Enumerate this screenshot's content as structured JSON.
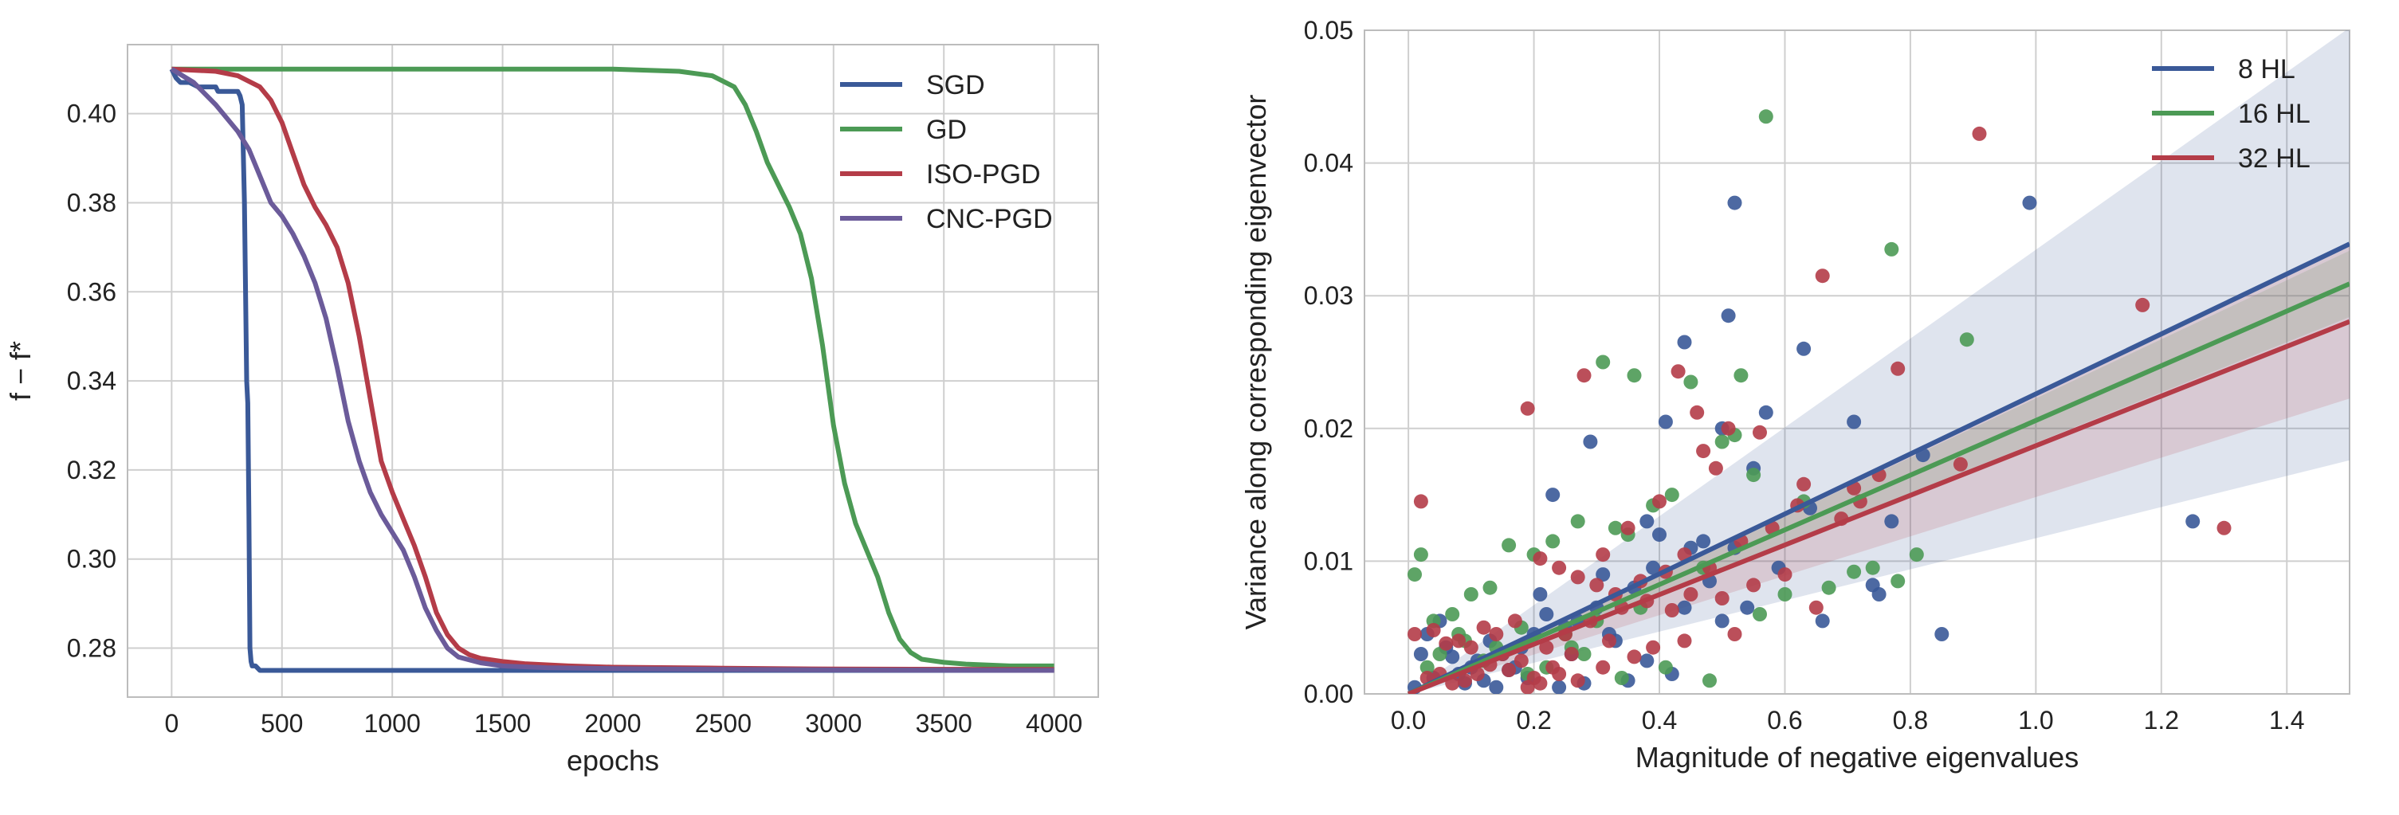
{
  "chart_data": [
    {
      "type": "line",
      "title": "",
      "xlabel": "epochs",
      "ylabel": "f − f*",
      "xlim": [
        -200,
        4200
      ],
      "ylim": [
        0.269,
        0.4155
      ],
      "xticks": [
        0,
        500,
        1000,
        1500,
        2000,
        2500,
        3000,
        3500,
        4000
      ],
      "yticks": [
        0.28,
        0.3,
        0.32,
        0.34,
        0.36,
        0.38,
        0.4
      ],
      "grid": true,
      "legend": "top-right",
      "series": [
        {
          "name": "SGD",
          "color": "#3a5998",
          "x": [
            0,
            20,
            40,
            80,
            120,
            200,
            210,
            300,
            310,
            320,
            330,
            335,
            340,
            345,
            350,
            355,
            360,
            365,
            380,
            400,
            420,
            1000,
            2000,
            3000,
            4000
          ],
          "y": [
            0.41,
            0.408,
            0.407,
            0.407,
            0.406,
            0.406,
            0.405,
            0.405,
            0.404,
            0.402,
            0.38,
            0.36,
            0.34,
            0.335,
            0.31,
            0.28,
            0.277,
            0.276,
            0.276,
            0.275,
            0.275,
            0.275,
            0.275,
            0.275,
            0.275
          ]
        },
        {
          "name": "GD",
          "color": "#4c9a55",
          "x": [
            0,
            1000,
            2000,
            2300,
            2450,
            2550,
            2600,
            2650,
            2700,
            2750,
            2800,
            2850,
            2900,
            2950,
            3000,
            3050,
            3100,
            3150,
            3200,
            3250,
            3300,
            3350,
            3400,
            3500,
            3600,
            3700,
            3800,
            4000
          ],
          "y": [
            0.41,
            0.41,
            0.41,
            0.4095,
            0.4085,
            0.406,
            0.402,
            0.396,
            0.389,
            0.384,
            0.379,
            0.373,
            0.363,
            0.348,
            0.33,
            0.317,
            0.308,
            0.302,
            0.296,
            0.288,
            0.282,
            0.279,
            0.2775,
            0.2768,
            0.2764,
            0.2762,
            0.276,
            0.276
          ]
        },
        {
          "name": "ISO-PGD",
          "color": "#b43c48",
          "x": [
            0,
            200,
            300,
            400,
            450,
            500,
            550,
            600,
            650,
            700,
            750,
            800,
            850,
            900,
            950,
            1000,
            1050,
            1100,
            1150,
            1200,
            1250,
            1300,
            1350,
            1400,
            1500,
            1600,
            1800,
            2000,
            2500,
            3000,
            4000
          ],
          "y": [
            0.41,
            0.4095,
            0.4085,
            0.406,
            0.403,
            0.398,
            0.391,
            0.384,
            0.379,
            0.375,
            0.37,
            0.362,
            0.35,
            0.336,
            0.322,
            0.315,
            0.309,
            0.303,
            0.296,
            0.288,
            0.283,
            0.28,
            0.2785,
            0.2777,
            0.277,
            0.2765,
            0.276,
            0.2757,
            0.2755,
            0.2753,
            0.2752
          ]
        },
        {
          "name": "CNC-PGD",
          "color": "#6b5b9a",
          "x": [
            0,
            100,
            200,
            300,
            350,
            400,
            450,
            500,
            550,
            600,
            650,
            700,
            750,
            800,
            850,
            900,
            950,
            1000,
            1050,
            1100,
            1150,
            1200,
            1250,
            1300,
            1400,
            1500,
            1700,
            2000,
            2500,
            3000,
            4000
          ],
          "y": [
            0.41,
            0.407,
            0.402,
            0.396,
            0.392,
            0.386,
            0.38,
            0.377,
            0.373,
            0.368,
            0.362,
            0.354,
            0.343,
            0.331,
            0.322,
            0.315,
            0.31,
            0.306,
            0.302,
            0.296,
            0.289,
            0.284,
            0.28,
            0.278,
            0.2767,
            0.276,
            0.2756,
            0.2754,
            0.2752,
            0.2751,
            0.275
          ]
        }
      ]
    },
    {
      "type": "scatter",
      "title": "",
      "xlabel": "Magnitude of negative eigenvalues",
      "ylabel": "Variance along corresponding eigenvector",
      "xlim": [
        -0.07,
        1.5
      ],
      "ylim": [
        0.0,
        0.05
      ],
      "xticks": [
        0.0,
        0.2,
        0.4,
        0.6,
        0.8,
        1.0,
        1.2,
        1.4
      ],
      "yticks": [
        0.0,
        0.01,
        0.02,
        0.03,
        0.04,
        0.05
      ],
      "grid": true,
      "legend": "top-right",
      "series": [
        {
          "name": "8 HL",
          "color": "#3a5998",
          "fit": {
            "slope": 0.0226,
            "intercept": 0.0,
            "band_x0": 0.0,
            "band_half_width_at_1_5": 0.0163
          },
          "x": [
            0.52,
            0.44,
            0.51,
            0.99,
            0.63,
            0.57,
            0.5,
            0.41,
            0.29,
            0.38,
            0.23,
            0.55,
            0.47,
            0.4,
            0.31,
            0.82,
            0.71,
            0.77,
            0.74,
            0.66,
            1.25,
            0.85,
            0.59,
            0.52,
            0.64,
            0.75,
            0.36,
            0.3,
            0.27,
            0.25,
            0.22,
            0.2,
            0.18,
            0.15,
            0.13,
            0.1,
            0.08,
            0.05,
            0.02,
            0.01,
            0.12,
            0.17,
            0.26,
            0.33,
            0.44,
            0.48,
            0.38,
            0.42,
            0.35,
            0.28,
            0.24,
            0.19,
            0.16,
            0.11,
            0.06,
            0.03,
            0.14,
            0.21,
            0.32,
            0.39,
            0.45,
            0.5,
            0.54,
            0.07,
            0.09,
            0.04
          ],
          "y": [
            0.037,
            0.0265,
            0.0285,
            0.037,
            0.026,
            0.0212,
            0.02,
            0.0205,
            0.019,
            0.013,
            0.015,
            0.017,
            0.0115,
            0.012,
            0.009,
            0.018,
            0.0205,
            0.013,
            0.0082,
            0.0055,
            0.013,
            0.0045,
            0.0095,
            0.011,
            0.014,
            0.0075,
            0.008,
            0.0065,
            0.0055,
            0.005,
            0.006,
            0.0045,
            0.0035,
            0.003,
            0.004,
            0.002,
            0.0015,
            0.0055,
            0.003,
            0.0005,
            0.001,
            0.002,
            0.003,
            0.004,
            0.0065,
            0.0085,
            0.0025,
            0.0015,
            0.001,
            0.0008,
            0.0005,
            0.0012,
            0.0018,
            0.0025,
            0.0035,
            0.0045,
            0.0005,
            0.0075,
            0.0045,
            0.0095,
            0.011,
            0.0055,
            0.0065,
            0.0028,
            0.0008,
            0.0012
          ]
        },
        {
          "name": "16 HL",
          "color": "#4c9a55",
          "fit": {
            "slope": 0.0206,
            "intercept": 0.0,
            "band_x0": 0.0,
            "band_half_width_at_1_5": 0.0025
          },
          "x": [
            0.57,
            0.31,
            0.36,
            0.52,
            0.53,
            0.77,
            0.89,
            0.45,
            0.55,
            0.5,
            0.63,
            0.71,
            0.78,
            0.81,
            0.42,
            0.39,
            0.35,
            0.33,
            0.27,
            0.23,
            0.2,
            0.16,
            0.13,
            0.1,
            0.07,
            0.04,
            0.02,
            0.01,
            0.6,
            0.47,
            0.37,
            0.3,
            0.25,
            0.18,
            0.14,
            0.09,
            0.05,
            0.22,
            0.28,
            0.41,
            0.48,
            0.56,
            0.67,
            0.74,
            0.12,
            0.03,
            0.08,
            0.19,
            0.26,
            0.34
          ],
          "y": [
            0.0435,
            0.025,
            0.024,
            0.0195,
            0.024,
            0.0335,
            0.0267,
            0.0235,
            0.0165,
            0.019,
            0.0145,
            0.0092,
            0.0085,
            0.0105,
            0.015,
            0.0142,
            0.012,
            0.0125,
            0.013,
            0.0115,
            0.0105,
            0.0112,
            0.008,
            0.0075,
            0.006,
            0.0055,
            0.0105,
            0.009,
            0.0075,
            0.0095,
            0.0065,
            0.0055,
            0.0045,
            0.005,
            0.0035,
            0.004,
            0.003,
            0.002,
            0.003,
            0.002,
            0.001,
            0.006,
            0.008,
            0.0095,
            0.0025,
            0.002,
            0.0045,
            0.0015,
            0.0035,
            0.0012
          ]
        },
        {
          "name": "32 HL",
          "color": "#b43c48",
          "fit": {
            "slope": 0.0187,
            "intercept": 0.0,
            "band_x0": 0.0,
            "band_half_width_at_1_5": 0.0058
          },
          "x": [
            0.91,
            0.66,
            1.17,
            0.78,
            1.3,
            0.88,
            0.75,
            0.71,
            0.19,
            0.28,
            0.43,
            0.46,
            0.47,
            0.51,
            0.49,
            0.56,
            0.63,
            0.4,
            0.35,
            0.31,
            0.02,
            0.21,
            0.24,
            0.27,
            0.3,
            0.33,
            0.37,
            0.41,
            0.44,
            0.48,
            0.53,
            0.58,
            0.62,
            0.69,
            0.72,
            0.17,
            0.14,
            0.12,
            0.1,
            0.08,
            0.06,
            0.04,
            0.01,
            0.15,
            0.18,
            0.22,
            0.25,
            0.29,
            0.34,
            0.38,
            0.42,
            0.45,
            0.5,
            0.55,
            0.6,
            0.65,
            0.11,
            0.13,
            0.16,
            0.2,
            0.23,
            0.26,
            0.32,
            0.36,
            0.39,
            0.09,
            0.07,
            0.05,
            0.03,
            0.19,
            0.21,
            0.24,
            0.27,
            0.31,
            0.44,
            0.52
          ],
          "y": [
            0.0422,
            0.0315,
            0.0293,
            0.0245,
            0.0125,
            0.0173,
            0.0165,
            0.0155,
            0.0215,
            0.024,
            0.0243,
            0.0212,
            0.0183,
            0.02,
            0.017,
            0.0197,
            0.0158,
            0.0145,
            0.0125,
            0.0105,
            0.0145,
            0.0102,
            0.0095,
            0.0088,
            0.0082,
            0.0075,
            0.0085,
            0.0092,
            0.0105,
            0.0095,
            0.0115,
            0.0125,
            0.0142,
            0.0132,
            0.0145,
            0.0055,
            0.0045,
            0.005,
            0.0035,
            0.004,
            0.0038,
            0.0048,
            0.0045,
            0.003,
            0.0025,
            0.0035,
            0.0045,
            0.0055,
            0.0065,
            0.007,
            0.0063,
            0.0075,
            0.0072,
            0.0082,
            0.009,
            0.0065,
            0.0015,
            0.0022,
            0.0018,
            0.0012,
            0.002,
            0.003,
            0.004,
            0.0028,
            0.0035,
            0.001,
            0.0008,
            0.0015,
            0.0012,
            0.0005,
            0.0008,
            0.0015,
            0.001,
            0.002,
            0.004,
            0.0045
          ]
        }
      ]
    }
  ]
}
